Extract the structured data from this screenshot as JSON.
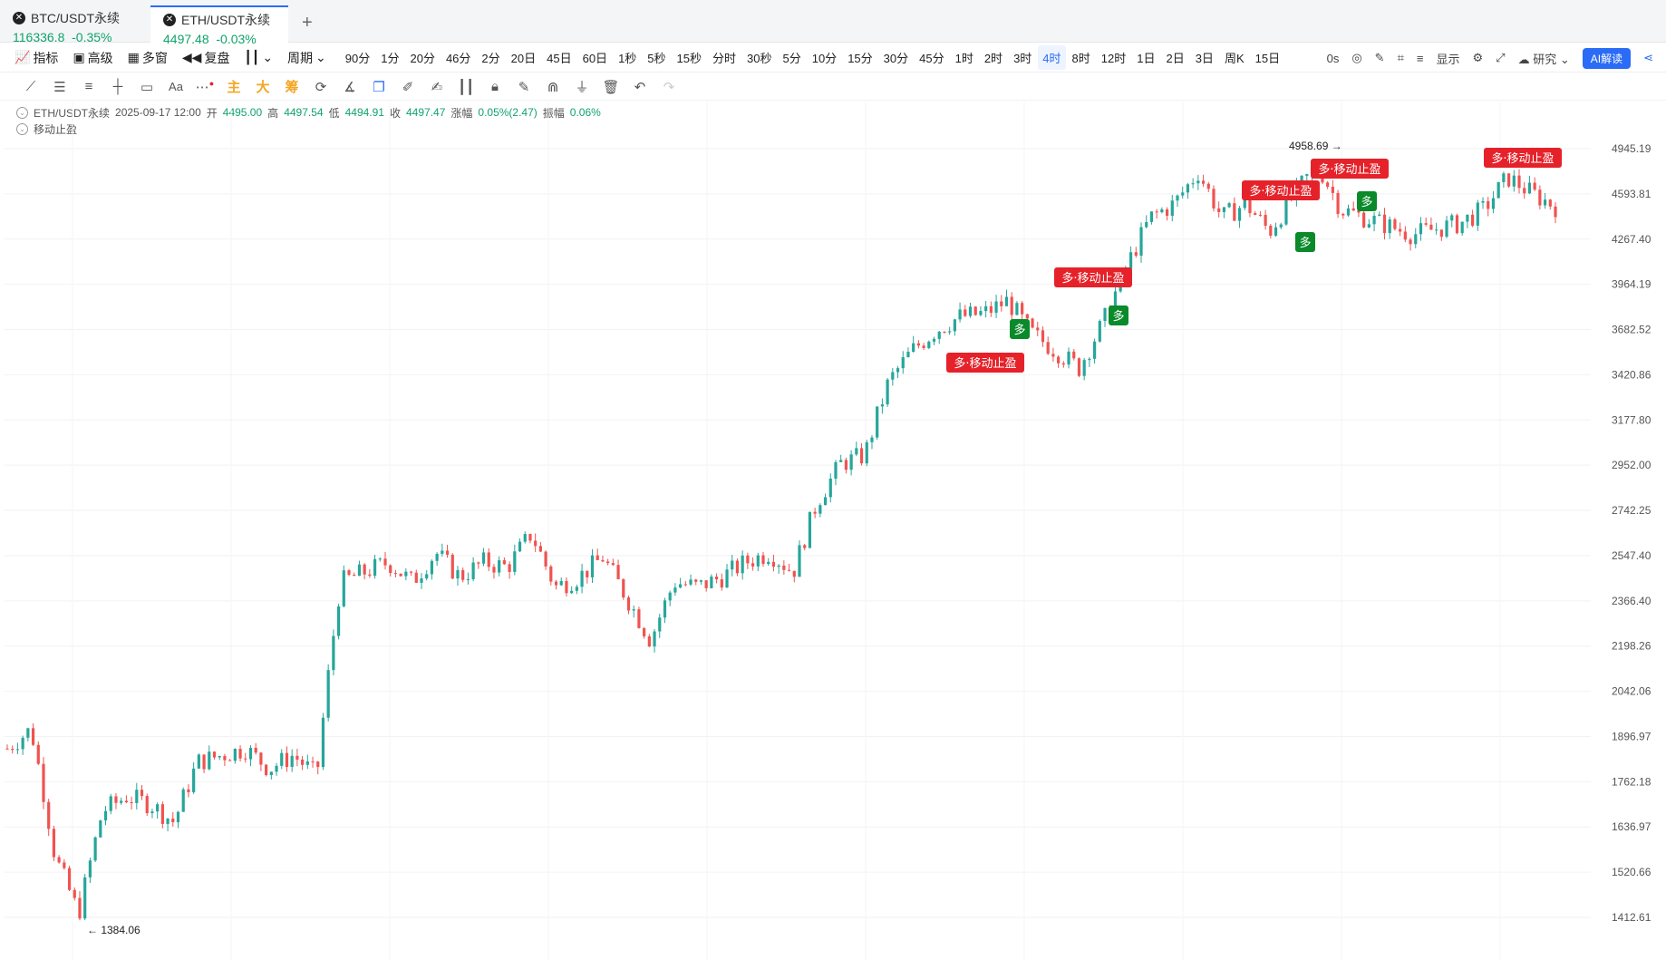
{
  "tabs": [
    {
      "name": "BTC/USDT永续",
      "price": "116336.8",
      "change": "-0.35%",
      "active": false
    },
    {
      "name": "ETH/USDT永续",
      "price": "4497.48",
      "change": "-0.03%",
      "active": true
    }
  ],
  "toolbar": {
    "indicator": "指标",
    "advanced": "高级",
    "multi_window": "多窗",
    "replay": "复盘",
    "period": "周期",
    "periods": [
      "90分",
      "1分",
      "20分",
      "46分",
      "2分",
      "20日",
      "45日",
      "60日",
      "1秒",
      "5秒",
      "15秒",
      "分时",
      "30秒",
      "5分",
      "10分",
      "15分",
      "30分",
      "45分",
      "1时",
      "2时",
      "3时",
      "4时",
      "8时",
      "12时",
      "1日",
      "2日",
      "3日",
      "周K",
      "15日"
    ],
    "active_period": "4时",
    "timer": "0s",
    "display": "显示",
    "research": "研究",
    "ai": "AI解读"
  },
  "drawing_tools": {
    "main": "主",
    "big": "大",
    "chips": "筹",
    "text": "Aa"
  },
  "legend": {
    "symbol": "ETH/USDT永续",
    "datetime": "2025-09-17 12:00",
    "open_label": "开",
    "open": "4495.00",
    "high_label": "高",
    "high": "4497.54",
    "low_label": "低",
    "low": "4494.91",
    "close_label": "收",
    "close": "4497.47",
    "change_label": "涨幅",
    "change": "0.05%(2.47)",
    "amp_label": "振幅",
    "amp": "0.06%",
    "indicator_name": "移动止盈"
  },
  "price_axis": [
    "4945.19",
    "4593.81",
    "4267.40",
    "3964.19",
    "3682.52",
    "3420.86",
    "3177.80",
    "2952.00",
    "2742.25",
    "2547.40",
    "2366.40",
    "2198.26",
    "2042.06",
    "1896.97",
    "1762.18",
    "1636.97",
    "1520.66",
    "1412.61"
  ],
  "annotations": {
    "max": "4958.69",
    "min": "1384.06"
  },
  "signals": [
    {
      "type": "sell",
      "label": "多·移动止盈"
    },
    {
      "type": "buy",
      "label": "多"
    },
    {
      "type": "sell",
      "label": "多·移动止盈"
    },
    {
      "type": "buy",
      "label": "多"
    },
    {
      "type": "sell",
      "label": "多·移动止盈"
    },
    {
      "type": "buy",
      "label": "多"
    },
    {
      "type": "sell",
      "label": "多·移动止盈"
    },
    {
      "type": "buy",
      "label": "多"
    },
    {
      "type": "sell",
      "label": "多·移动止盈"
    }
  ],
  "colors": {
    "up": "#26a69a",
    "down": "#ef5350",
    "sell": "#e5222a",
    "buy": "#0a8a2a",
    "accent": "#2a6cf6"
  },
  "chart_data": {
    "type": "candlestick",
    "symbol": "ETH/USDT永续",
    "y_scale": "log",
    "ylim": [
      1384.06,
      4958.69
    ],
    "trend_path": [
      1860,
      1920,
      1560,
      1420,
      1680,
      1720,
      1700,
      1650,
      1820,
      1840,
      1860,
      1800,
      1840,
      1780,
      2440,
      2480,
      2520,
      2440,
      2560,
      2460,
      2520,
      2500,
      2640,
      2420,
      2460,
      2540,
      2380,
      2220,
      2440,
      2420,
      2460,
      2520,
      2560,
      2480,
      2780,
      2960,
      3000,
      3380,
      3560,
      3680,
      3760,
      3780,
      3860,
      3660,
      3560,
      3460,
      3720,
      4080,
      4420,
      4520,
      4760,
      4420,
      4520,
      4320,
      4580,
      4820,
      4480,
      4420,
      4360,
      4300,
      4340,
      4380,
      4480,
      4720,
      4600,
      4500
    ]
  }
}
